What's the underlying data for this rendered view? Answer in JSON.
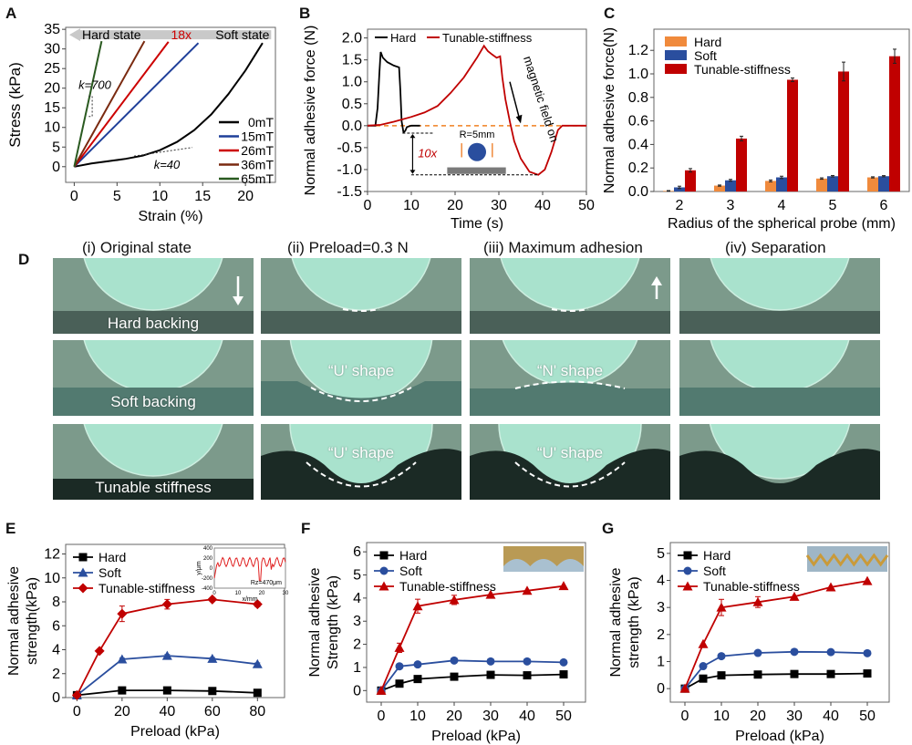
{
  "panel_letters": {
    "A": "A",
    "B": "B",
    "C": "C",
    "D": "D",
    "E": "E",
    "F": "F",
    "G": "G"
  },
  "chart_data": [
    {
      "id": "A",
      "type": "line",
      "xlabel": "Strain (%)",
      "ylabel": "Stress (kPa)",
      "xlim": [
        -1,
        23.5
      ],
      "ylim": [
        -4,
        35.5
      ],
      "xticks": [
        0,
        5,
        10,
        15,
        20
      ],
      "yticks": [
        0,
        5,
        10,
        15,
        20,
        25,
        30,
        35
      ],
      "series": [
        {
          "name": "0mT",
          "color": "#000000",
          "points": [
            [
              0,
              0
            ],
            [
              2,
              0.8
            ],
            [
              4,
              1.4
            ],
            [
              6,
              2.0
            ],
            [
              8,
              2.8
            ],
            [
              10,
              4.2
            ],
            [
              12,
              6.3
            ],
            [
              14,
              9.3
            ],
            [
              16,
              13.3
            ],
            [
              18,
              18.5
            ],
            [
              20,
              24.5
            ],
            [
              22,
              31.5
            ]
          ]
        },
        {
          "name": "15mT",
          "color": "#1f3f99",
          "points": [
            [
              0,
              0
            ],
            [
              14.5,
              31.5
            ]
          ]
        },
        {
          "name": "26mT",
          "color": "#cc0000",
          "points": [
            [
              0,
              0
            ],
            [
              11,
              31.8
            ]
          ]
        },
        {
          "name": "36mT",
          "color": "#7a2a10",
          "points": [
            [
              0,
              0
            ],
            [
              8.2,
              32
            ]
          ]
        },
        {
          "name": "65mT",
          "color": "#2a5a20",
          "points": [
            [
              0,
              0
            ],
            [
              3.2,
              32
            ]
          ]
        }
      ],
      "annotations": {
        "arrow_left": "Hard state",
        "ratio": "18x",
        "arrow_right": "Soft state",
        "k_high": "k=700",
        "k_low": "k=40"
      }
    },
    {
      "id": "B",
      "type": "line",
      "xlabel": "Time (s)",
      "ylabel": "Normal adhesive force (N)",
      "xlim": [
        0,
        50
      ],
      "ylim": [
        -1.5,
        2.2
      ],
      "xticks": [
        0,
        10,
        20,
        30,
        40,
        50
      ],
      "yticks": [
        -1.5,
        -1.0,
        -0.5,
        0.0,
        0.5,
        1.0,
        1.5,
        2.0
      ],
      "series": [
        {
          "name": "Hard",
          "color": "#000000",
          "points": [
            [
              0,
              0
            ],
            [
              1.8,
              0
            ],
            [
              2.3,
              0.4
            ],
            [
              2.7,
              1.2
            ],
            [
              3.0,
              1.68
            ],
            [
              3.5,
              1.55
            ],
            [
              4.5,
              1.45
            ],
            [
              6,
              1.37
            ],
            [
              7.2,
              1.33
            ],
            [
              7.5,
              0.8
            ],
            [
              7.8,
              0.1
            ],
            [
              8.2,
              -0.15
            ],
            [
              8.6,
              -0.12
            ],
            [
              9,
              -0.03
            ],
            [
              10,
              0
            ],
            [
              12,
              0
            ]
          ]
        },
        {
          "name": "Tunable-stiffness",
          "color": "#c00000",
          "points": [
            [
              0,
              0
            ],
            [
              3,
              0.02
            ],
            [
              6,
              0.09
            ],
            [
              10,
              0.2
            ],
            [
              13,
              0.3
            ],
            [
              16,
              0.45
            ],
            [
              19,
              0.75
            ],
            [
              22,
              1.1
            ],
            [
              25,
              1.55
            ],
            [
              26.6,
              1.82
            ],
            [
              27.5,
              1.7
            ],
            [
              28.5,
              1.62
            ],
            [
              29.5,
              1.55
            ],
            [
              30.3,
              1.58
            ],
            [
              30.8,
              1.1
            ],
            [
              31.5,
              0.6
            ],
            [
              32.5,
              0.1
            ],
            [
              33.5,
              -0.35
            ],
            [
              35,
              -0.75
            ],
            [
              37,
              -1.05
            ],
            [
              39,
              -1.12
            ],
            [
              40.5,
              -1.0
            ],
            [
              42,
              -0.6
            ],
            [
              43.5,
              -0.1
            ],
            [
              44.5,
              0
            ],
            [
              50,
              0
            ]
          ]
        }
      ],
      "reference_line": {
        "y": 0,
        "color": "#f08020",
        "style": "dashed"
      },
      "annotations": {
        "ratio": "10x",
        "probe": "R=5mm",
        "arrow_text": "magnetic field on"
      }
    },
    {
      "id": "C",
      "type": "bar",
      "xlabel": "Radius of the spherical probe (mm)",
      "ylabel": "Normal adhesive force(N)",
      "ylim": [
        0,
        1.38
      ],
      "yticks": [
        0.0,
        0.2,
        0.4,
        0.6,
        0.8,
        1.0,
        1.2
      ],
      "categories": [
        "2",
        "3",
        "4",
        "5",
        "6"
      ],
      "series": [
        {
          "name": "Hard",
          "color": "#f08a3c",
          "values": [
            0.005,
            0.05,
            0.09,
            0.11,
            0.12
          ],
          "errors": [
            0.003,
            0.005,
            0.008,
            0.006,
            0.005
          ]
        },
        {
          "name": "Soft",
          "color": "#2a4e9e",
          "values": [
            0.035,
            0.095,
            0.12,
            0.13,
            0.13
          ],
          "errors": [
            0.01,
            0.008,
            0.01,
            0.006,
            0.005
          ]
        },
        {
          "name": "Tunable-stiffness",
          "color": "#c00000",
          "values": [
            0.18,
            0.45,
            0.95,
            1.02,
            1.15
          ],
          "errors": [
            0.015,
            0.02,
            0.015,
            0.08,
            0.06
          ]
        }
      ],
      "legend": "top-left"
    },
    {
      "id": "E",
      "type": "line",
      "xlabel": "Preload (kPa)",
      "ylabel": "Normal adhesive strength(kPa)",
      "xlim": [
        -5,
        92
      ],
      "ylim": [
        0,
        12.8
      ],
      "xticks": [
        0,
        20,
        40,
        60,
        80
      ],
      "yticks": [
        0,
        2,
        4,
        6,
        8,
        10,
        12
      ],
      "series": [
        {
          "name": "Hard",
          "color": "#000000",
          "marker": "square",
          "x": [
            0,
            20,
            40,
            60,
            80
          ],
          "values": [
            0.2,
            0.6,
            0.6,
            0.55,
            0.4
          ],
          "errors": [
            0,
            0.05,
            0.05,
            0.05,
            0.05
          ]
        },
        {
          "name": "Soft",
          "color": "#2a4e9e",
          "marker": "triangle",
          "x": [
            0,
            20,
            40,
            60,
            80
          ],
          "values": [
            0.2,
            3.2,
            3.5,
            3.25,
            2.8
          ],
          "errors": [
            0,
            0.1,
            0.1,
            0.1,
            0.1
          ]
        },
        {
          "name": "Tunable-stiffness",
          "color": "#c00000",
          "marker": "diamond",
          "x": [
            0,
            10,
            20,
            40,
            60,
            80
          ],
          "values": [
            0.2,
            3.9,
            7.0,
            7.8,
            8.2,
            7.8
          ],
          "errors": [
            0,
            0.1,
            0.65,
            0.4,
            0.15,
            0.2
          ]
        }
      ],
      "inset": {
        "xlabel": "x/mm",
        "ylabel": "y/μm",
        "xticks": [
          0,
          10,
          20,
          30
        ],
        "yticks": [
          -400,
          -200,
          0,
          200,
          400
        ],
        "label": "Rz=470μm",
        "color": "#e02020"
      },
      "legend": "top-left"
    },
    {
      "id": "F",
      "type": "line",
      "xlabel": "Preload (kPa)",
      "ylabel": "Normal adhesive Strength (kPa)",
      "xlim": [
        -4,
        56
      ],
      "ylim": [
        -0.5,
        6.4
      ],
      "xticks": [
        0,
        10,
        20,
        30,
        40,
        50
      ],
      "yticks": [
        0,
        1,
        2,
        3,
        4,
        5,
        6
      ],
      "series": [
        {
          "name": "Hard",
          "color": "#000000",
          "marker": "square",
          "x": [
            0,
            5,
            10,
            20,
            30,
            40,
            50
          ],
          "values": [
            0,
            0.3,
            0.5,
            0.6,
            0.68,
            0.66,
            0.7
          ],
          "errors": [
            0,
            0.03,
            0.04,
            0.04,
            0.04,
            0.04,
            0.04
          ]
        },
        {
          "name": "Soft",
          "color": "#2a4e9e",
          "marker": "circle",
          "x": [
            0,
            5,
            10,
            20,
            30,
            40,
            50
          ],
          "values": [
            0,
            1.05,
            1.13,
            1.3,
            1.26,
            1.26,
            1.22
          ],
          "errors": [
            0,
            0.04,
            0.04,
            0.04,
            0.04,
            0.04,
            0.04
          ]
        },
        {
          "name": "Tunable-stiffness",
          "color": "#c00000",
          "marker": "triangle",
          "x": [
            0,
            5,
            10,
            20,
            30,
            40,
            50
          ],
          "values": [
            0,
            1.85,
            3.65,
            3.92,
            4.15,
            4.32,
            4.52
          ],
          "errors": [
            0,
            0.2,
            0.3,
            0.2,
            0.06,
            0.06,
            0.06
          ]
        }
      ],
      "legend": "top-left"
    },
    {
      "id": "G",
      "type": "line",
      "xlabel": "Preload (kPa)",
      "ylabel": "Normal adhesive strength (kPa)",
      "xlim": [
        -4,
        56
      ],
      "ylim": [
        -0.5,
        5.4
      ],
      "xticks": [
        0,
        10,
        20,
        30,
        40,
        50
      ],
      "yticks": [
        0,
        1,
        2,
        3,
        4,
        5
      ],
      "series": [
        {
          "name": "Hard",
          "color": "#000000",
          "marker": "square",
          "x": [
            0,
            5,
            10,
            20,
            30,
            40,
            50
          ],
          "values": [
            0,
            0.37,
            0.49,
            0.52,
            0.54,
            0.54,
            0.56
          ],
          "errors": [
            0,
            0.03,
            0.03,
            0.03,
            0.03,
            0.03,
            0.03
          ]
        },
        {
          "name": "Soft",
          "color": "#2a4e9e",
          "marker": "circle",
          "x": [
            0,
            5,
            10,
            20,
            30,
            40,
            50
          ],
          "values": [
            0,
            0.83,
            1.2,
            1.32,
            1.36,
            1.35,
            1.31
          ],
          "errors": [
            0,
            0.04,
            0.05,
            0.04,
            0.04,
            0.04,
            0.04
          ]
        },
        {
          "name": "Tunable-stiffness",
          "color": "#c00000",
          "marker": "triangle",
          "x": [
            0,
            5,
            10,
            20,
            30,
            40,
            50
          ],
          "values": [
            0,
            1.65,
            3.0,
            3.2,
            3.4,
            3.75,
            3.98
          ],
          "errors": [
            0,
            0.05,
            0.3,
            0.2,
            0.06,
            0.06,
            0.06
          ]
        }
      ],
      "legend": "top-left"
    }
  ],
  "panel_D": {
    "columns": [
      "(i)   Original state",
      "(ii)   Preload=0.3 N",
      "(iii)  Maximum adhesion",
      "(iv) Separation"
    ],
    "rows": [
      {
        "label": "Hard backing",
        "cells": [
          "",
          "",
          "",
          ""
        ]
      },
      {
        "label": "Soft backing",
        "cells": [
          "",
          "“U' shape",
          "“N' shape",
          ""
        ]
      },
      {
        "label": "Tunable stiffness",
        "cells": [
          "",
          "“U' shape",
          "“U' shape",
          ""
        ]
      }
    ]
  }
}
